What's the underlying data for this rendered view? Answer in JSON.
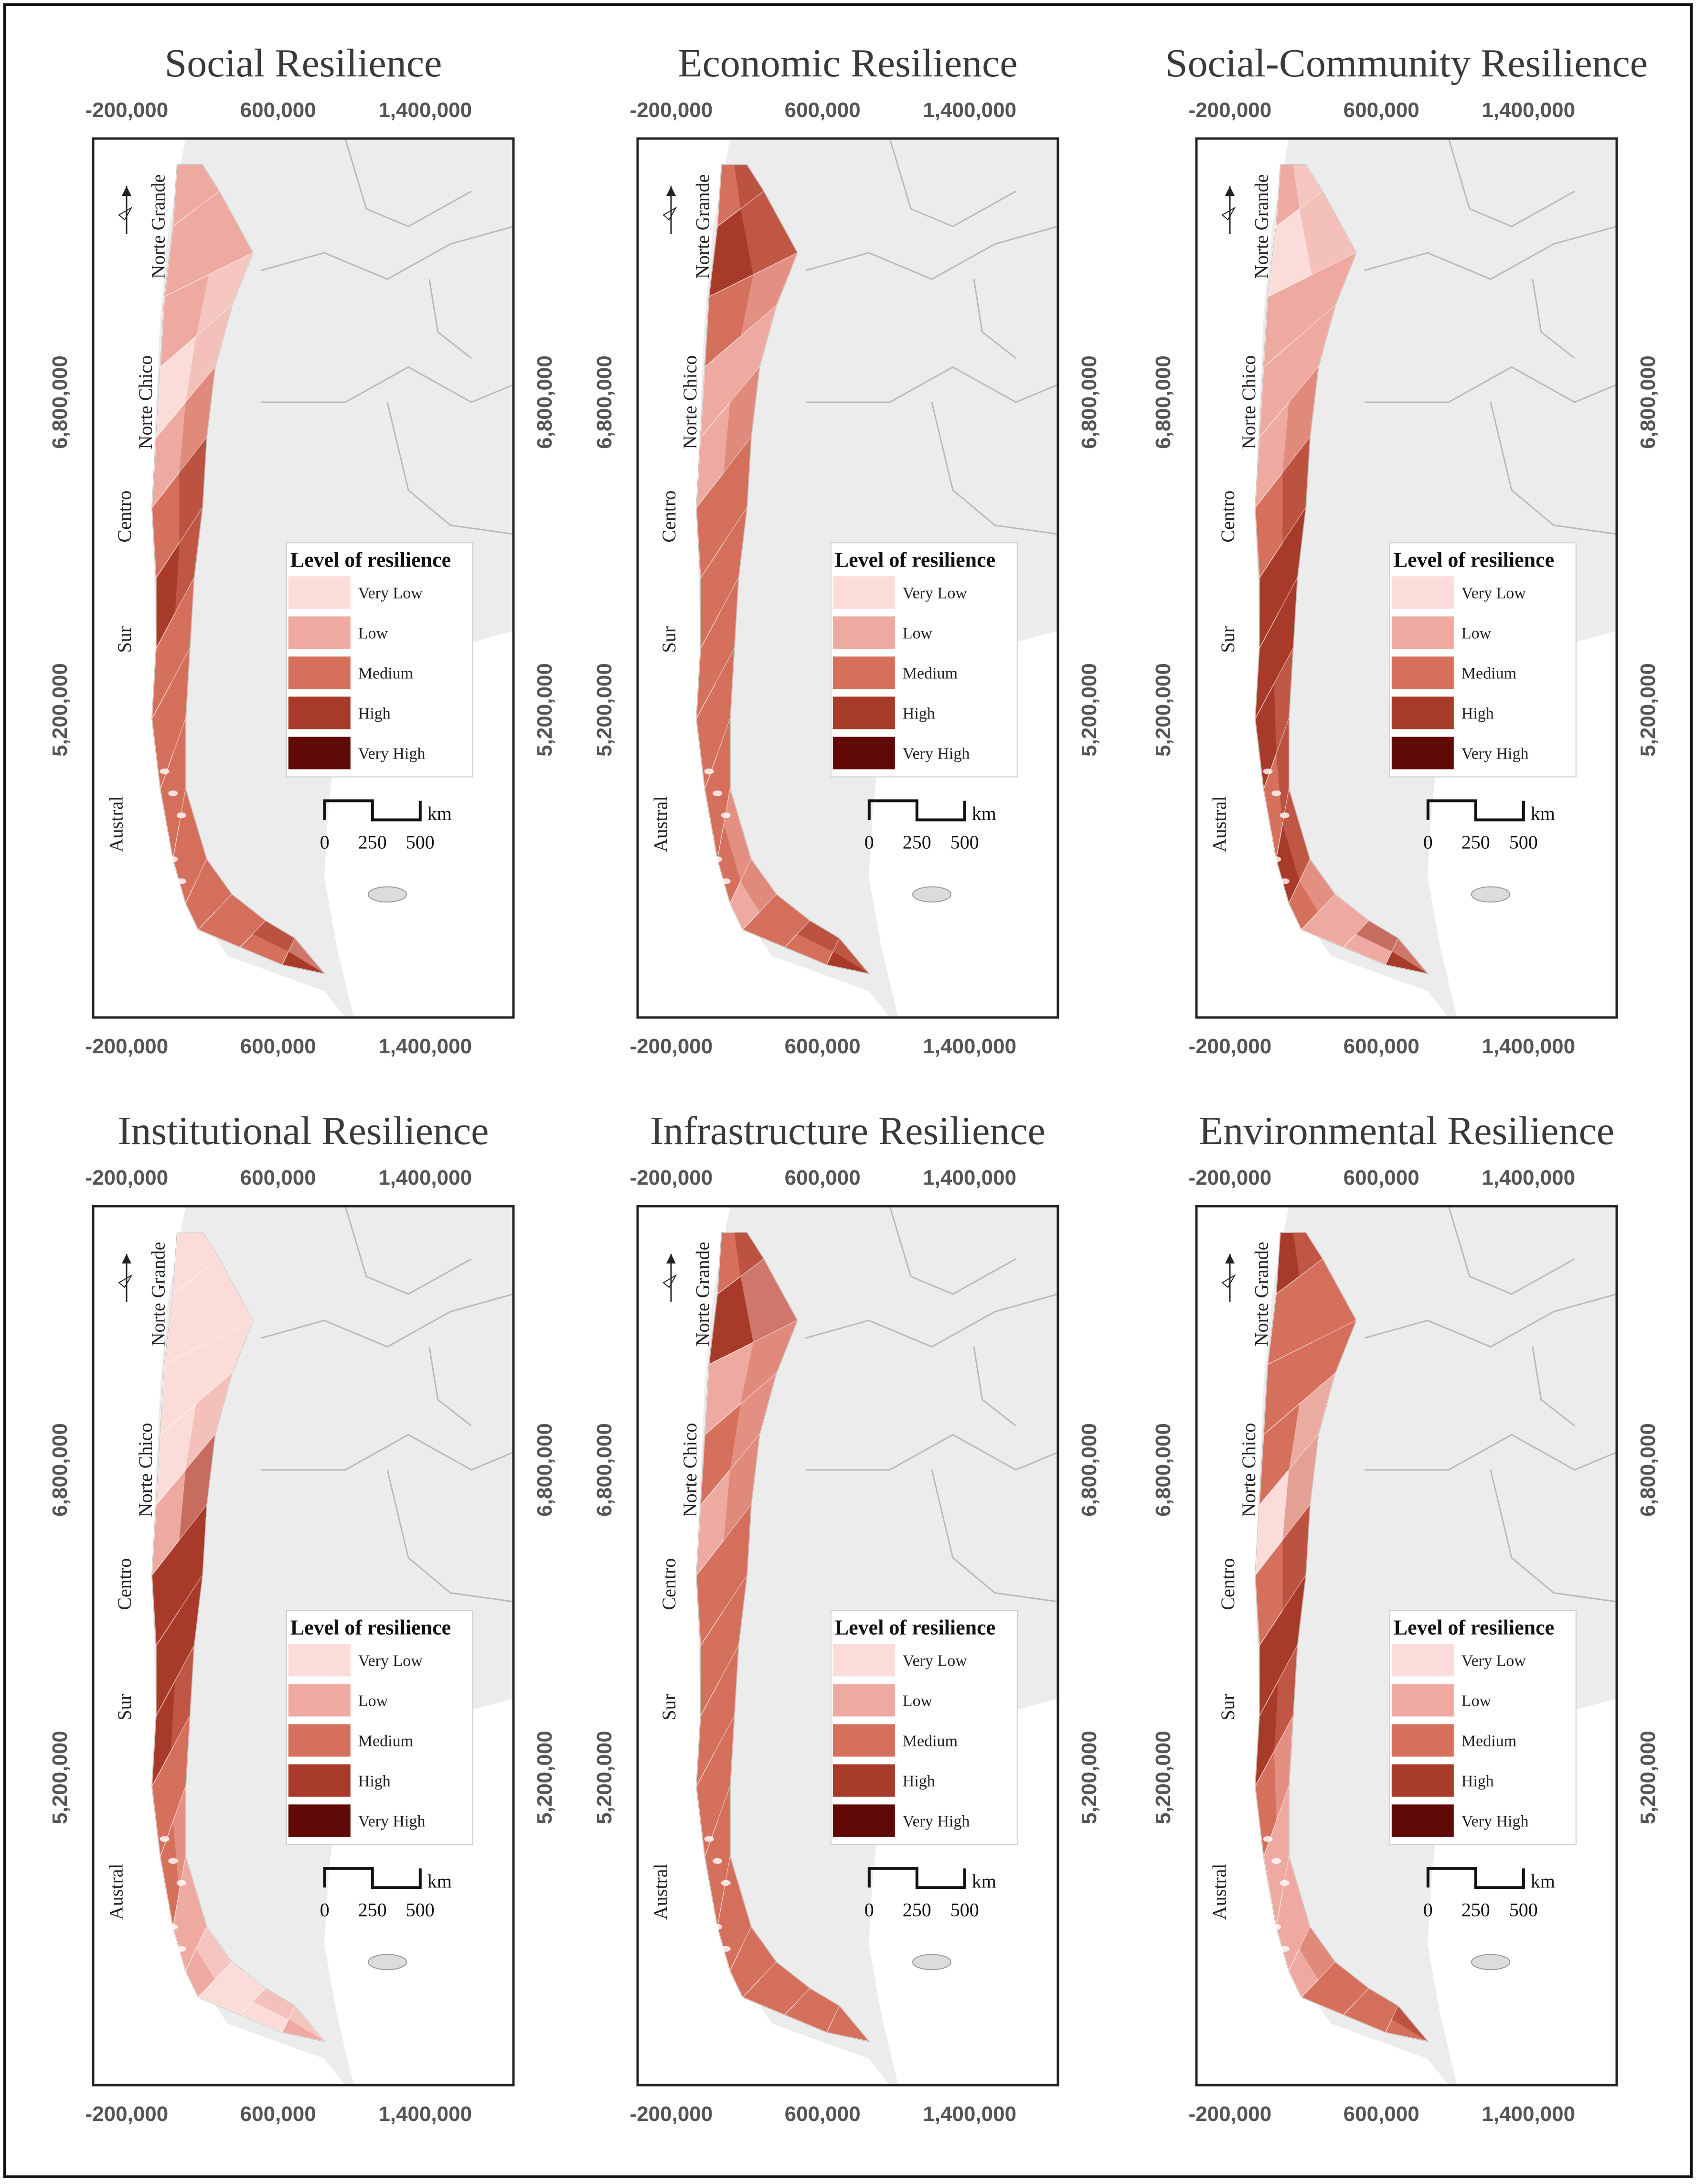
{
  "figure": {
    "axis_labels": {
      "x": [
        "-200,000",
        "600,000",
        "1,400,000"
      ],
      "y": [
        "6,800,000",
        "5,200,000"
      ]
    },
    "regions": [
      "Norte Grande",
      "Norte Chico",
      "Centro",
      "Sur",
      "Austral"
    ],
    "legend": {
      "title": "Level of resilience",
      "classes": [
        {
          "label": "Very Low",
          "color": "#fbdcd9"
        },
        {
          "label": "Low",
          "color": "#eeaaa0"
        },
        {
          "label": "Medium",
          "color": "#d4705c"
        },
        {
          "label": "High",
          "color": "#a83a29"
        },
        {
          "label": "Very High",
          "color": "#600a08"
        }
      ]
    },
    "scale": {
      "unit": "km",
      "ticks": [
        "0",
        "250",
        "500"
      ]
    },
    "north_arrow": "north-arrow-icon",
    "colors": {
      "land": "#ececec",
      "border": "#b9b9b9",
      "frame": "#222222"
    }
  },
  "panels": [
    {
      "title": "Social Resilience",
      "profile": [
        1,
        1,
        1,
        0,
        1,
        2,
        3,
        2,
        2,
        2,
        2,
        2,
        2,
        2,
        3
      ]
    },
    {
      "title": "Economic Resilience",
      "profile": [
        2,
        3,
        2,
        1,
        1,
        2,
        2,
        2,
        2,
        2,
        2,
        1,
        2,
        2,
        3
      ]
    },
    {
      "title": "Social-Community Resilience",
      "profile": [
        1,
        0,
        1,
        1,
        1,
        2,
        3,
        3,
        3,
        2,
        3,
        2,
        1,
        1,
        3
      ]
    },
    {
      "title": "Institutional Resilience",
      "profile": [
        0,
        0,
        0,
        0,
        1,
        3,
        3,
        3,
        2,
        2,
        1,
        1,
        0,
        0,
        1
      ]
    },
    {
      "title": "Infrastructure Resilience",
      "profile": [
        2,
        3,
        1,
        2,
        1,
        2,
        2,
        2,
        2,
        2,
        2,
        2,
        2,
        2,
        2
      ]
    },
    {
      "title": "Environmental Resilience",
      "profile": [
        3,
        2,
        2,
        2,
        0,
        2,
        3,
        3,
        2,
        1,
        1,
        1,
        2,
        2,
        2
      ]
    }
  ]
}
